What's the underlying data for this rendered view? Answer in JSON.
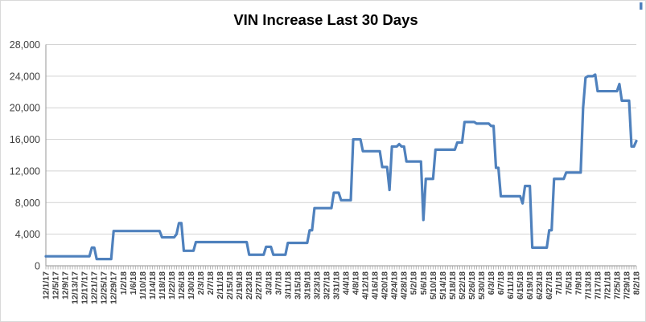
{
  "chart": {
    "colors": {
      "line": "#4f81bd",
      "gridline": "#d3d3d3",
      "axis": "#a6a6a6",
      "tick": "#a6a6a6",
      "label_text": "#3f3f3f",
      "title_text": "#000000",
      "border": "#d9d9d9",
      "background": "#ffffff"
    }
  },
  "chart_data": {
    "type": "line",
    "title": "VIN Increase Last 30 Days",
    "xlabel": "",
    "ylabel": "",
    "legend": "none",
    "grid": "horizontal",
    "ylim": [
      0,
      28000
    ],
    "y_tick_step": 4000,
    "y_tick_labels": [
      "0",
      "4,000",
      "8,000",
      "12,000",
      "16,000",
      "20,000",
      "24,000",
      "28,000"
    ],
    "x_start": "12/1/17",
    "x_end": "8/2/18",
    "x_label_every_n_days": 4,
    "x_tick_labels": [
      "12/1/17",
      "12/5/17",
      "12/9/17",
      "12/13/17",
      "12/17/17",
      "12/21/17",
      "12/25/17",
      "12/29/17",
      "1/2/18",
      "1/6/18",
      "1/10/18",
      "1/14/18",
      "1/18/18",
      "1/22/18",
      "1/26/18",
      "1/30/18",
      "2/3/18",
      "2/7/18",
      "2/11/18",
      "2/15/18",
      "2/19/18",
      "2/23/18",
      "2/27/18",
      "3/3/18",
      "3/7/18",
      "3/11/18",
      "3/15/18",
      "3/19/18",
      "3/23/18",
      "3/27/18",
      "3/31/18",
      "4/4/18",
      "4/8/18",
      "4/12/18",
      "4/16/18",
      "4/20/18",
      "4/24/18",
      "4/28/18",
      "5/2/18",
      "5/6/18",
      "5/10/18",
      "5/14/18",
      "5/18/18",
      "5/22/18",
      "5/26/18",
      "5/30/18",
      "6/3/18",
      "6/7/18",
      "6/11/18",
      "6/15/18",
      "6/19/18",
      "6/23/18",
      "6/27/18",
      "7/1/18",
      "7/5/18",
      "7/9/18",
      "7/13/18",
      "7/17/18",
      "7/21/18",
      "7/25/18",
      "7/29/18",
      "8/2/18"
    ],
    "series": [
      {
        "name": "VIN Increase",
        "color": "#4f81bd",
        "values": [
          1200,
          1200,
          1200,
          1200,
          1200,
          1200,
          1200,
          1200,
          1200,
          1200,
          1200,
          1200,
          1200,
          1200,
          1200,
          1200,
          1200,
          1200,
          1200,
          2300,
          2300,
          850,
          850,
          850,
          850,
          850,
          850,
          850,
          4400,
          4400,
          4400,
          4400,
          4400,
          4400,
          4400,
          4400,
          4400,
          4400,
          4400,
          4400,
          4400,
          4400,
          4400,
          4400,
          4400,
          4400,
          4400,
          4400,
          3600,
          3600,
          3600,
          3600,
          3600,
          3600,
          4000,
          5400,
          5400,
          1900,
          1900,
          1900,
          1900,
          1900,
          3000,
          3000,
          3000,
          3000,
          3000,
          3000,
          3000,
          3000,
          3000,
          3000,
          3000,
          3000,
          3000,
          3000,
          3000,
          3000,
          3000,
          3000,
          3000,
          3000,
          3000,
          3000,
          1400,
          1400,
          1400,
          1400,
          1400,
          1400,
          1400,
          2400,
          2400,
          2400,
          1400,
          1400,
          1400,
          1400,
          1400,
          1400,
          2900,
          2900,
          2900,
          2900,
          2900,
          2900,
          2900,
          2900,
          2900,
          4500,
          4500,
          7300,
          7300,
          7300,
          7300,
          7300,
          7300,
          7300,
          7300,
          9250,
          9250,
          9250,
          8300,
          8300,
          8300,
          8300,
          8300,
          16000,
          16000,
          16000,
          16000,
          14500,
          14500,
          14500,
          14500,
          14500,
          14500,
          14500,
          14500,
          12500,
          12500,
          12500,
          9600,
          15100,
          15100,
          15100,
          15400,
          15100,
          15100,
          13200,
          13200,
          13200,
          13200,
          13200,
          13200,
          13200,
          5800,
          11000,
          11000,
          11000,
          11000,
          14700,
          14700,
          14700,
          14700,
          14700,
          14700,
          14700,
          14700,
          14700,
          15600,
          15600,
          15600,
          18200,
          18200,
          18200,
          18200,
          18200,
          18000,
          18000,
          18000,
          18000,
          18000,
          18000,
          17700,
          17700,
          12400,
          12400,
          8800,
          8800,
          8800,
          8800,
          8800,
          8800,
          8800,
          8800,
          8800,
          7900,
          10100,
          10100,
          10100,
          2300,
          2300,
          2300,
          2300,
          2300,
          2300,
          2300,
          4500,
          4500,
          11000,
          11000,
          11000,
          11000,
          11000,
          11800,
          11800,
          11800,
          11800,
          11800,
          11800,
          11800,
          20000,
          23800,
          24000,
          24000,
          24000,
          24200,
          22100,
          22100,
          22100,
          22100,
          22100,
          22100,
          22100,
          22100,
          22100,
          23000,
          20900,
          20900,
          20900,
          20900,
          15100,
          15100,
          15800
        ]
      }
    ]
  }
}
